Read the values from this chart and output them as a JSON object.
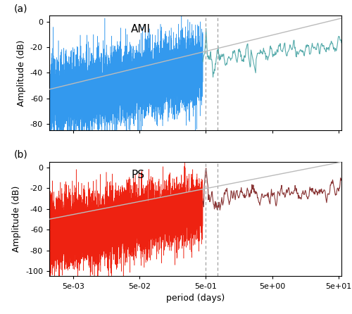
{
  "title_a": "AMI",
  "title_b": "PS",
  "xlabel": "period (days)",
  "ylabel": "Amplitude (dB)",
  "label_a": "(a)",
  "label_b": "(b)",
  "xlim": [
    0.0022,
    55
  ],
  "ylim_a": [
    -85,
    5
  ],
  "ylim_b": [
    -105,
    5
  ],
  "yticks_a": [
    0,
    -20,
    -40,
    -60,
    -80
  ],
  "yticks_b": [
    0,
    -20,
    -40,
    -60,
    -80,
    -100
  ],
  "xticks": [
    0.005,
    0.05,
    0.5,
    5,
    50
  ],
  "xtick_labels": [
    "5e-03",
    "5e-02",
    "5e-01",
    "5e+00",
    "5e+01"
  ],
  "dashed_line_1": 0.5,
  "dashed_line_2": 0.75,
  "fit_color": "#BBBBBB",
  "color_dense_a": "#3399EE",
  "color_sparse_a": "#55AAAA",
  "color_dense_b": "#EE2211",
  "color_sparse_b": "#883333",
  "background_color": "#FFFFFF",
  "seed": 42,
  "x_start": 0.0022,
  "x_transition": 0.45,
  "x_end": 55.0,
  "n_dense": 8000,
  "n_sparse": 300,
  "fit_y_at_xstart_a": -53,
  "fit_y_at_xend_a": 3,
  "fit_y_at_xstart_b": -50,
  "fit_y_at_xend_b": 5,
  "envelope_top_at_xstart_a": -40,
  "envelope_top_at_xtransition_a": -18,
  "envelope_bottom_at_xstart_a": -82,
  "envelope_bottom_at_xtransition_a": -55,
  "envelope_top_at_xstart_b": -40,
  "envelope_top_at_xtransition_b": -20,
  "envelope_bottom_at_xstart_b": -90,
  "envelope_bottom_at_xtransition_b": -60,
  "fontsize_label": 9,
  "fontsize_tick": 8,
  "fontsize_panel": 10,
  "fontsize_title": 11
}
